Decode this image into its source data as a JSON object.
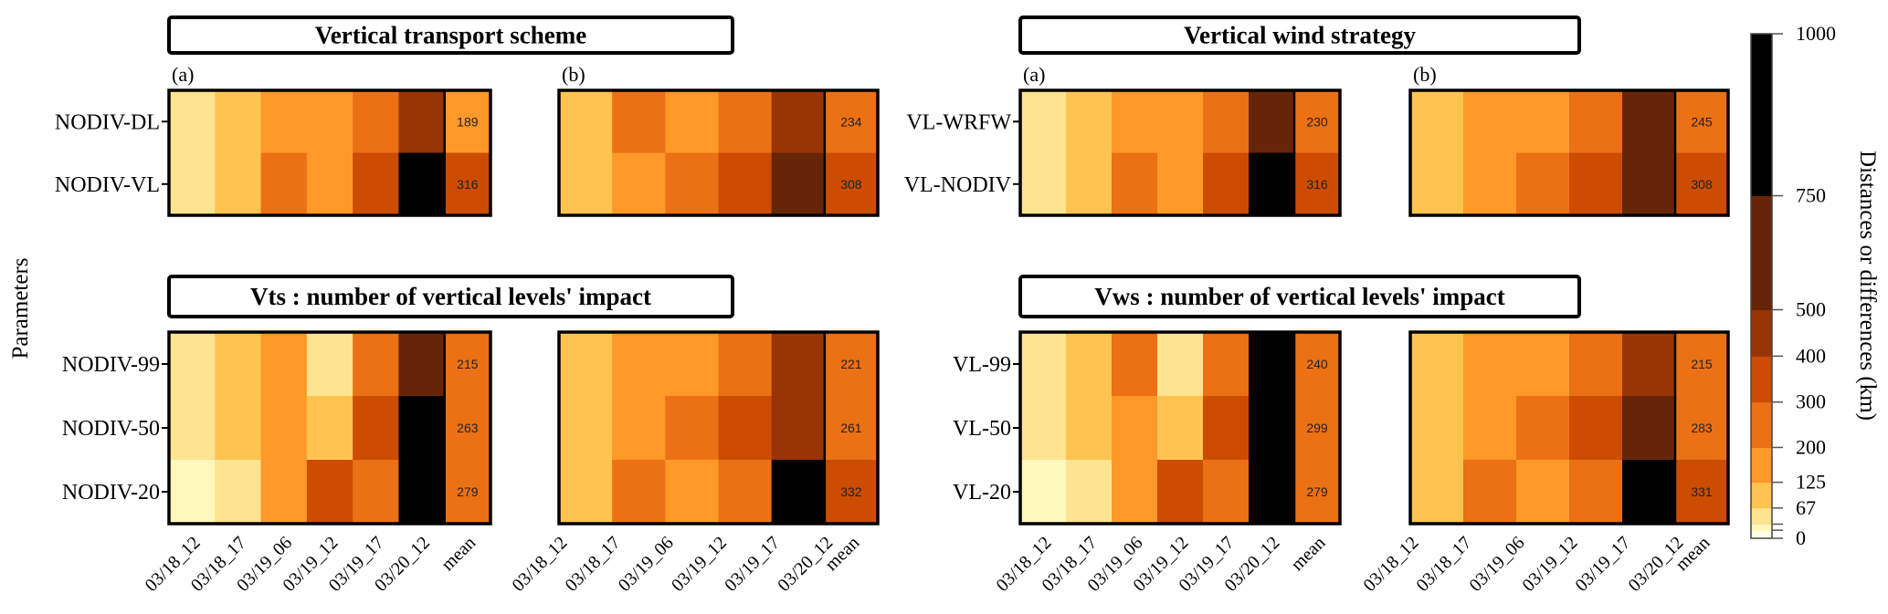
{
  "chart_data": {
    "type": "heatmap",
    "y_axis_label": "Parameters",
    "colorbar": {
      "title": "Distances or differences (km)",
      "tick_labels": [
        "0",
        "",
        "",
        "67",
        "125",
        "200",
        "300",
        "400",
        "500",
        "750",
        "1000"
      ],
      "bands": [
        {
          "min": 0,
          "max": 15,
          "color": "#ffffe5"
        },
        {
          "min": 15,
          "max": 30,
          "color": "#fff7bc"
        },
        {
          "min": 30,
          "max": 67,
          "color": "#fee391"
        },
        {
          "min": 67,
          "max": 125,
          "color": "#fec44f"
        },
        {
          "min": 125,
          "max": 200,
          "color": "#fe9929"
        },
        {
          "min": 200,
          "max": 300,
          "color": "#ec7014"
        },
        {
          "min": 300,
          "max": 400,
          "color": "#cc4c02"
        },
        {
          "min": 400,
          "max": 500,
          "color": "#993404"
        },
        {
          "min": 500,
          "max": 750,
          "color": "#662506"
        },
        {
          "min": 750,
          "max": 1000,
          "color": "#000000"
        }
      ]
    },
    "x_labels": [
      "03/18_12",
      "03/18_17",
      "03/19_06",
      "03/19_12",
      "03/19_17",
      "03/20_12",
      "mean"
    ],
    "panels": [
      {
        "title": "Vertical transport scheme",
        "rows": [
          "NODIV-DL",
          "NODIV-VL"
        ],
        "subpanels": [
          {
            "label": "(a)",
            "values": [
              [
                50,
                100,
                160,
                160,
                250,
                450
              ],
              [
                50,
                100,
                250,
                160,
                350,
                850
              ]
            ],
            "means": [
              189,
              316
            ]
          },
          {
            "label": "(b)",
            "values": [
              [
                100,
                250,
                160,
                250,
                450
              ],
              [
                100,
                160,
                250,
                350,
                600
              ]
            ],
            "means": [
              234,
              308
            ]
          }
        ]
      },
      {
        "title": "Vertical wind strategy",
        "rows": [
          "VL-WRFW",
          "VL-NODIV"
        ],
        "subpanels": [
          {
            "label": "(a)",
            "values": [
              [
                50,
                100,
                160,
                160,
                250,
                600
              ],
              [
                50,
                100,
                250,
                160,
                350,
                850
              ]
            ],
            "means": [
              230,
              316
            ]
          },
          {
            "label": "(b)",
            "values": [
              [
                100,
                160,
                160,
                250,
                600
              ],
              [
                100,
                160,
                250,
                350,
                600
              ]
            ],
            "means": [
              245,
              308
            ]
          }
        ]
      },
      {
        "title": "Vts : number of vertical levels' impact",
        "rows": [
          "NODIV-99",
          "NODIV-50",
          "NODIV-20"
        ],
        "subpanels": [
          {
            "label": "",
            "values": [
              [
                50,
                100,
                160,
                50,
                250,
                600
              ],
              [
                50,
                100,
                160,
                100,
                350,
                850
              ],
              [
                20,
                50,
                160,
                350,
                250,
                850
              ]
            ],
            "means": [
              215,
              263,
              279
            ]
          },
          {
            "label": "",
            "values": [
              [
                100,
                160,
                160,
                250,
                450
              ],
              [
                100,
                160,
                250,
                350,
                450
              ],
              [
                100,
                250,
                160,
                250,
                850
              ]
            ],
            "means": [
              221,
              261,
              332
            ]
          }
        ]
      },
      {
        "title": "Vws : number of vertical levels' impact",
        "rows": [
          "VL-99",
          "VL-50",
          "VL-20"
        ],
        "subpanels": [
          {
            "label": "",
            "values": [
              [
                50,
                100,
                250,
                50,
                250,
                850
              ],
              [
                50,
                100,
                160,
                100,
                350,
                850
              ],
              [
                20,
                50,
                160,
                350,
                250,
                850
              ]
            ],
            "means": [
              240,
              299,
              279
            ]
          },
          {
            "label": "",
            "values": [
              [
                100,
                160,
                160,
                250,
                450
              ],
              [
                100,
                160,
                250,
                350,
                600
              ],
              [
                100,
                250,
                160,
                250,
                850
              ]
            ],
            "means": [
              215,
              283,
              331
            ]
          }
        ]
      }
    ]
  }
}
